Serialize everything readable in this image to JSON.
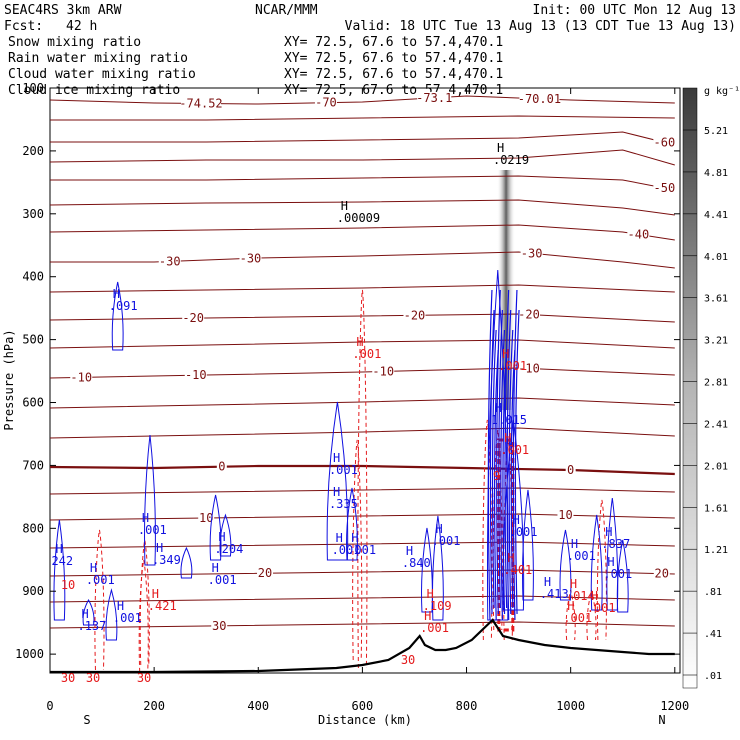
{
  "header": {
    "model": "SEAC4RS  3km ARW",
    "center": "NCAR/MMM",
    "init": "Init: 00 UTC Mon 12 Aug 13",
    "fcst_label": "Fcst:",
    "fcst_value": "42 h",
    "valid": "Valid: 18 UTC Tue 13 Aug 13 (13 CDT Tue 13 Aug 13)"
  },
  "fields": [
    {
      "name": "Snow mixing ratio",
      "xy": "XY=  72.5, 67.6 to  57.4,470.1",
      "color": "#000000"
    },
    {
      "name": "Rain water mixing ratio",
      "xy": "XY=  72.5, 67.6 to  57.4,470.1",
      "color": "#e41a1c"
    },
    {
      "name": "Cloud water mixing ratio",
      "xy": "XY=  72.5, 67.6 to  57.4,470.1",
      "color": "#1f1fd6"
    },
    {
      "name": "Cloud ice mixing ratio",
      "xy": "XY=  72.5, 67.6 to  57.4,470.1",
      "color": "#000000"
    }
  ],
  "colors": {
    "temperature": "#7a0f0f",
    "rain": "#e41a1c",
    "cloud": "#1010e0",
    "terrain": "#000000"
  },
  "chart_data": {
    "type": "heatmap",
    "xlabel": "Distance (km)",
    "ylabel": "Pressure (hPa)",
    "xlim": [
      0,
      1210
    ],
    "ylim": [
      1030,
      100
    ],
    "xticks": [
      0,
      200,
      400,
      600,
      800,
      1000,
      1200
    ],
    "yticks": [
      100,
      200,
      300,
      400,
      500,
      600,
      700,
      800,
      900,
      1000
    ],
    "endpoints": {
      "left": "S",
      "right": "N"
    },
    "colorbar": {
      "unit": "g kg⁻¹",
      "ticks": [
        "5.21",
        "4.81",
        "4.41",
        "4.01",
        "3.61",
        "3.21",
        "2.81",
        "2.41",
        "2.01",
        "1.61",
        "1.21",
        ".81",
        ".41",
        ".01"
      ]
    },
    "temperature_contours": [
      {
        "level": "-70",
        "points": [
          [
            0,
            100
          ],
          [
            200,
            103
          ],
          [
            400,
            104
          ],
          [
            600,
            102
          ],
          [
            800,
            96
          ],
          [
            1000,
            100
          ],
          [
            1200,
            103
          ]
        ],
        "labels": [
          {
            "x": 530,
            "t": "-70"
          },
          {
            "x": 290,
            "t": "-74.52"
          },
          {
            "x": 738,
            "t": "-73.1"
          },
          {
            "x": 940,
            "t": "-70.01"
          }
        ]
      },
      {
        "level": "",
        "points": [
          [
            0,
            120
          ],
          [
            300,
            120
          ],
          [
            600,
            118
          ],
          [
            900,
            116
          ],
          [
            1200,
            118
          ]
        ],
        "labels": []
      },
      {
        "level": "-60",
        "points": [
          [
            0,
            142
          ],
          [
            300,
            142
          ],
          [
            600,
            140
          ],
          [
            900,
            138
          ],
          [
            1100,
            132
          ],
          [
            1200,
            145
          ]
        ],
        "labels": [
          {
            "x": 1180,
            "t": "-60"
          }
        ]
      },
      {
        "level": "",
        "points": [
          [
            0,
            162
          ],
          [
            300,
            160
          ],
          [
            600,
            160
          ],
          [
            900,
            158
          ],
          [
            1100,
            150
          ],
          [
            1200,
            165
          ]
        ],
        "labels": []
      },
      {
        "level": "-50",
        "points": [
          [
            0,
            180
          ],
          [
            300,
            180
          ],
          [
            600,
            178
          ],
          [
            900,
            176
          ],
          [
            1100,
            180
          ],
          [
            1200,
            190
          ]
        ],
        "labels": [
          {
            "x": 1180,
            "t": "-50"
          }
        ]
      },
      {
        "level": "",
        "points": [
          [
            0,
            205
          ],
          [
            300,
            203
          ],
          [
            600,
            202
          ],
          [
            900,
            200
          ],
          [
            1100,
            208
          ],
          [
            1200,
            215
          ]
        ],
        "labels": []
      },
      {
        "level": "-40",
        "points": [
          [
            0,
            232
          ],
          [
            300,
            230
          ],
          [
            600,
            228
          ],
          [
            900,
            225
          ],
          [
            1100,
            232
          ],
          [
            1200,
            240
          ]
        ],
        "labels": [
          {
            "x": 1130,
            "t": "-40"
          }
        ]
      },
      {
        "level": "-30",
        "points": [
          [
            0,
            262
          ],
          [
            200,
            262
          ],
          [
            400,
            258
          ],
          [
            600,
            256
          ],
          [
            900,
            252
          ],
          [
            1100,
            262
          ],
          [
            1200,
            268
          ]
        ],
        "labels": [
          {
            "x": 230,
            "t": "-30"
          },
          {
            "x": 385,
            "t": "-30"
          },
          {
            "x": 925,
            "t": "-30"
          }
        ]
      },
      {
        "level": "",
        "points": [
          [
            0,
            292
          ],
          [
            300,
            290
          ],
          [
            600,
            288
          ],
          [
            900,
            285
          ],
          [
            1200,
            292
          ]
        ],
        "labels": []
      },
      {
        "level": "-20",
        "points": [
          [
            0,
            320
          ],
          [
            300,
            318
          ],
          [
            600,
            316
          ],
          [
            900,
            314
          ],
          [
            1200,
            322
          ]
        ],
        "labels": [
          {
            "x": 275,
            "t": "-20"
          },
          {
            "x": 700,
            "t": "-20"
          },
          {
            "x": 920,
            "t": "-20"
          }
        ]
      },
      {
        "level": "",
        "points": [
          [
            0,
            348
          ],
          [
            300,
            345
          ],
          [
            600,
            342
          ],
          [
            900,
            340
          ],
          [
            1200,
            348
          ]
        ],
        "labels": []
      },
      {
        "level": "-10",
        "points": [
          [
            0,
            378
          ],
          [
            300,
            375
          ],
          [
            600,
            372
          ],
          [
            900,
            368
          ],
          [
            1200,
            375
          ]
        ],
        "labels": [
          {
            "x": 60,
            "t": "-10"
          },
          {
            "x": 280,
            "t": "-10"
          },
          {
            "x": 640,
            "t": "-10"
          },
          {
            "x": 920,
            "t": "-10"
          }
        ]
      },
      {
        "level": "",
        "points": [
          [
            0,
            408
          ],
          [
            300,
            405
          ],
          [
            600,
            402
          ],
          [
            900,
            398
          ],
          [
            1200,
            405
          ]
        ],
        "labels": []
      },
      {
        "level": "",
        "points": [
          [
            0,
            438
          ],
          [
            300,
            435
          ],
          [
            600,
            432
          ],
          [
            900,
            428
          ],
          [
            1200,
            436
          ]
        ],
        "labels": []
      },
      {
        "level": "0",
        "points": [
          [
            0,
            467
          ],
          [
            200,
            468
          ],
          [
            400,
            466
          ],
          [
            600,
            466
          ],
          [
            800,
            468
          ],
          [
            1000,
            470
          ],
          [
            1200,
            474
          ]
        ],
        "labels": [
          {
            "x": 330,
            "t": "0"
          },
          {
            "x": 1000,
            "t": "0"
          }
        ],
        "bold": true
      },
      {
        "level": "",
        "points": [
          [
            0,
            494
          ],
          [
            300,
            492
          ],
          [
            600,
            490
          ],
          [
            900,
            488
          ],
          [
            1200,
            492
          ]
        ],
        "labels": []
      },
      {
        "level": "10",
        "points": [
          [
            0,
            520
          ],
          [
            300,
            518
          ],
          [
            600,
            516
          ],
          [
            900,
            514
          ],
          [
            1200,
            518
          ]
        ],
        "labels": [
          {
            "x": 300,
            "t": "10"
          },
          {
            "x": 990,
            "t": "10"
          }
        ]
      },
      {
        "level": "",
        "points": [
          [
            0,
            548
          ],
          [
            300,
            546
          ],
          [
            600,
            544
          ],
          [
            900,
            542
          ],
          [
            1200,
            546
          ]
        ],
        "labels": []
      },
      {
        "level": "20",
        "points": [
          [
            0,
            576
          ],
          [
            300,
            574
          ],
          [
            600,
            572
          ],
          [
            900,
            570
          ],
          [
            1200,
            574
          ]
        ],
        "labels": [
          {
            "x": 413,
            "t": "20"
          },
          {
            "x": 1175,
            "t": "20"
          }
        ]
      },
      {
        "level": "",
        "points": [
          [
            0,
            602
          ],
          [
            300,
            600
          ],
          [
            600,
            598
          ],
          [
            900,
            596
          ],
          [
            1200,
            600
          ]
        ],
        "labels": []
      },
      {
        "level": "30",
        "points": [
          [
            0,
            628
          ],
          [
            300,
            626
          ],
          [
            600,
            624
          ],
          [
            900,
            622
          ],
          [
            1200,
            626
          ]
        ],
        "labels": [
          {
            "x": 325,
            "t": "30"
          }
        ]
      }
    ],
    "terrain": [
      [
        0,
        672
      ],
      [
        100,
        672
      ],
      [
        200,
        672
      ],
      [
        400,
        671
      ],
      [
        550,
        668
      ],
      [
        600,
        665
      ],
      [
        650,
        660
      ],
      [
        690,
        648
      ],
      [
        710,
        636
      ],
      [
        720,
        645
      ],
      [
        740,
        650
      ],
      [
        760,
        650
      ],
      [
        780,
        648
      ],
      [
        810,
        640
      ],
      [
        830,
        630
      ],
      [
        850,
        620
      ],
      [
        870,
        636
      ],
      [
        900,
        640
      ],
      [
        950,
        645
      ],
      [
        1000,
        648
      ],
      [
        1050,
        650
      ],
      [
        1100,
        652
      ],
      [
        1150,
        654
      ],
      [
        1200,
        654
      ]
    ],
    "maxima": [
      {
        "field": "cloud_ice",
        "x": 570,
        "y": 210,
        "value": ".00009"
      },
      {
        "field": "cloud_ice",
        "x": 870,
        "y": 152,
        "value": ".0219"
      },
      {
        "field": "cloud_water",
        "x": 132,
        "y": 298,
        "value": ".091"
      },
      {
        "field": "cloud_water",
        "x": 188,
        "y": 522,
        "value": ".001"
      },
      {
        "field": "cloud_water",
        "x": 215,
        "y": 552,
        "value": ".349"
      },
      {
        "field": "cloud_water",
        "x": 335,
        "y": 541,
        "value": ".204"
      },
      {
        "field": "cloud_water",
        "x": 555,
        "y": 462,
        "value": ".001"
      },
      {
        "field": "cloud_water",
        "x": 560,
        "y": 542,
        "value": ".001"
      },
      {
        "field": "cloud_water",
        "x": 590,
        "y": 542,
        "value": ".001"
      },
      {
        "field": "cloud_water",
        "x": 555,
        "y": 496,
        "value": ".335"
      },
      {
        "field": "cloud_water",
        "x": 695,
        "y": 555,
        "value": ".840"
      },
      {
        "field": "cloud_water",
        "x": 752,
        "y": 533,
        "value": ".001"
      },
      {
        "field": "cloud_water",
        "x": 866,
        "y": 412,
        "value": "1.015"
      },
      {
        "field": "cloud_water",
        "x": 900,
        "y": 524,
        "value": ".001"
      },
      {
        "field": "cloud_water",
        "x": 960,
        "y": 586,
        "value": ".413"
      },
      {
        "field": "cloud_water",
        "x": 1012,
        "y": 548,
        "value": ".001"
      },
      {
        "field": "cloud_water",
        "x": 1078,
        "y": 536,
        "value": ".837"
      },
      {
        "field": "cloud_water",
        "x": 1082,
        "y": 566,
        "value": ".001"
      },
      {
        "field": "cloud_water",
        "x": 88,
        "y": 572,
        "value": ".001"
      },
      {
        "field": "cloud_water",
        "x": 72,
        "y": 618,
        "value": ".137"
      },
      {
        "field": "cloud_water",
        "x": 140,
        "y": 610,
        "value": ".001"
      },
      {
        "field": "cloud_water",
        "x": 322,
        "y": 572,
        "value": ".001"
      },
      {
        "field": "cloud_water",
        "x": 22,
        "y": 553,
        "value": "242"
      },
      {
        "field": "rain",
        "x": 600,
        "y": 346,
        "value": ".001"
      },
      {
        "field": "rain",
        "x": 880,
        "y": 358,
        "value": ".001"
      },
      {
        "field": "rain",
        "x": 207,
        "y": 598,
        "value": ".421"
      },
      {
        "field": "rain",
        "x": 735,
        "y": 598,
        "value": ".109"
      },
      {
        "field": "rain",
        "x": 730,
        "y": 620,
        "value": ".001"
      },
      {
        "field": "rain",
        "x": 890,
        "y": 562,
        "value": ".401"
      },
      {
        "field": "rain",
        "x": 1010,
        "y": 588,
        "value": ".014"
      },
      {
        "field": "rain",
        "x": 1005,
        "y": 610,
        "value": ".001"
      },
      {
        "field": "rain",
        "x": 1050,
        "y": 600,
        "value": ".001"
      },
      {
        "field": "rain",
        "x": 870,
        "y": 468,
        "value": "9"
      },
      {
        "field": "rain",
        "x": 884,
        "y": 442,
        "value": ".001"
      },
      {
        "field": "rain",
        "x": 40,
        "y": 577,
        "value": "10"
      },
      {
        "field": "rain",
        "x": 40,
        "y": 670,
        "value": "30"
      },
      {
        "field": "rain",
        "x": 88,
        "y": 670,
        "value": "30"
      },
      {
        "field": "rain",
        "x": 186,
        "y": 670,
        "value": "30"
      },
      {
        "field": "rain",
        "x": 693,
        "y": 652,
        "value": "30"
      }
    ],
    "rain_columns": [
      [
        95,
        530,
        670
      ],
      [
        180,
        560,
        672
      ],
      [
        182,
        540,
        665
      ],
      [
        600,
        290,
        668
      ],
      [
        590,
        440,
        660
      ],
      [
        840,
        420,
        640
      ],
      [
        860,
        430,
        630
      ],
      [
        880,
        440,
        640
      ],
      [
        1000,
        590,
        640
      ],
      [
        1040,
        590,
        640
      ],
      [
        1060,
        500,
        640
      ]
    ],
    "cloud_columns": [
      [
        130,
        282,
        350
      ],
      [
        192,
        435,
        565
      ],
      [
        337,
        515,
        556
      ],
      [
        318,
        495,
        560
      ],
      [
        552,
        402,
        560
      ],
      [
        580,
        488,
        560
      ],
      [
        745,
        516,
        620
      ],
      [
        724,
        528,
        612
      ],
      [
        860,
        270,
        620
      ],
      [
        890,
        420,
        610
      ],
      [
        918,
        490,
        600
      ],
      [
        990,
        530,
        600
      ],
      [
        1050,
        515,
        610
      ],
      [
        1080,
        498,
        610
      ],
      [
        1100,
        540,
        612
      ],
      [
        18,
        520,
        620
      ],
      [
        118,
        590,
        640
      ],
      [
        74,
        600,
        625
      ],
      [
        262,
        548,
        578
      ]
    ],
    "snow_shading": {
      "x": 876,
      "top": 170,
      "bottom": 410
    }
  }
}
